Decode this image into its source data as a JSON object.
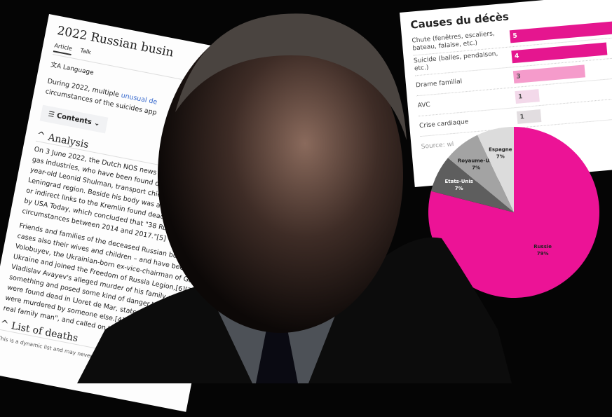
{
  "wiki": {
    "title": "2022 Russian busin",
    "tabs": [
      "Article",
      "Talk"
    ],
    "language": "Language",
    "intro": [
      "During 2022, multiple ",
      "unusual de",
      "circumstances of the suicides app"
    ],
    "contents": "Contents",
    "analysis_heading": "Analysis",
    "para1": [
      "On 3 June 2022, the Dutch NOS news ne",
      "gas industries, who have been found dead",
      "year-old Leonid Shulman, transport chief for",
      "Leningrad region. Beside his body was a suicide",
      "or indirect links to the Kremlin found dead in a myst",
      "by USA Today, which concluded that \"38 Russian busines",
      "circumstances between 2014 and 2017.\"[5]"
    ],
    "para2": [
      "Friends and families of the deceased Russian businessmen ger",
      "cases also their wives and children – and have been demanding a",
      "Volobuyev, the Ukrainian-born ex-vice-chairman of Gazprombank",
      "Ukraine and joined the Freedom of Russia Legion,[6][7] said in an in",
      "Vladislav Avayev's alleged murder of his family and subsequent su",
      "something and posed some kind of danger.\"[4][8] Likewise, Sergey",
      "were found dead in Lloret de Mar, stated his father was not the per",
      "were murdered by someone else.[4] Protosenya was the form",
      "real family man\", and called on the Spanish authoritie"
    ],
    "deaths_heading": "List of deaths",
    "note": "This is a dynamic list and may never be"
  },
  "chart_data": [
    {
      "type": "bar",
      "title": "Causes du décès",
      "categories": [
        "Chute (fenêtres, escaliers, bateau, falaise, etc.)",
        "Suicide (balles, pendaison, etc.)",
        "Drame familial",
        "AVC",
        "Crise cardiaque"
      ],
      "values": [
        5,
        4,
        3,
        1,
        1
      ],
      "colors": [
        "#e5168f",
        "#e5168f",
        "#f59bcb",
        "#f3d9ea",
        "#e2dde0"
      ],
      "source": "Source: wi"
    },
    {
      "type": "pie",
      "labels": [
        "Russie",
        "Etats-Unis",
        "Royaume-Uni",
        "Espagne"
      ],
      "values": [
        79,
        7,
        7,
        7
      ],
      "value_labels": [
        "79%",
        "7%",
        "7%",
        "7%"
      ],
      "colors": [
        "#ec1396",
        "#5e5e5e",
        "#a3a3a3",
        "#dcdcdc"
      ]
    }
  ]
}
